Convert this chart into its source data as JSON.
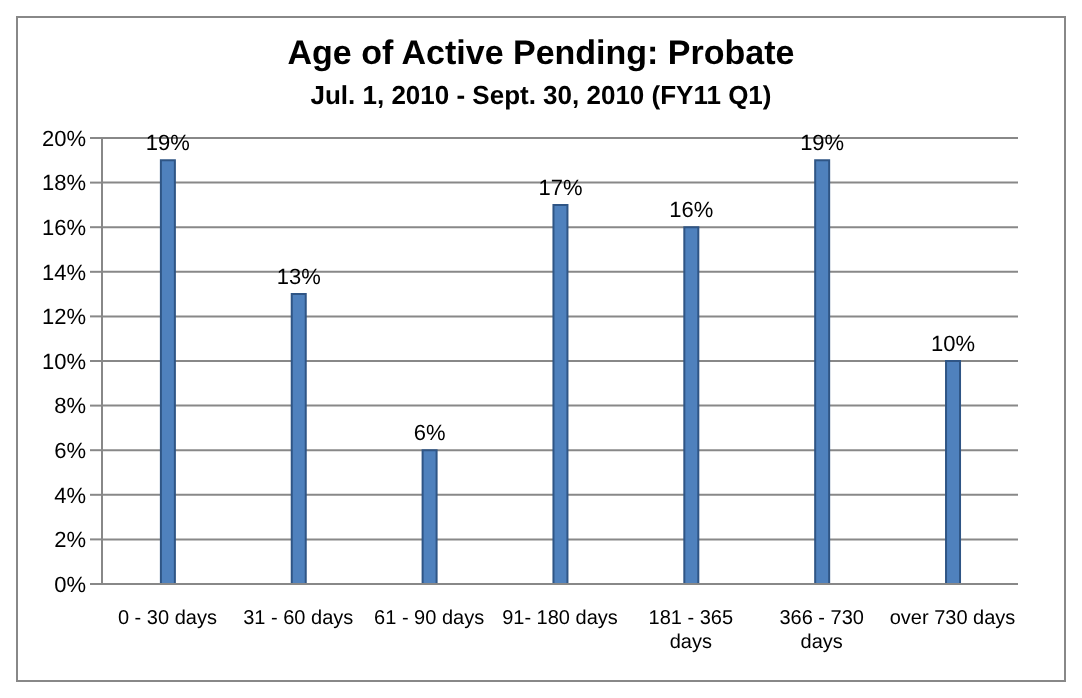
{
  "chart_data": {
    "type": "bar",
    "title": "Age of Active Pending: Probate",
    "subtitle": "Jul. 1, 2010 - Sept. 30, 2010 (FY11 Q1)",
    "categories": [
      "0 - 30 days",
      "31 - 60 days",
      "61 - 90 days",
      "91- 180 days",
      "181 - 365 days",
      "366 - 730 days",
      "over 730 days"
    ],
    "values": [
      19,
      13,
      6,
      17,
      16,
      19,
      10
    ],
    "value_labels": [
      "19%",
      "13%",
      "6%",
      "17%",
      "16%",
      "19%",
      "10%"
    ],
    "color": "#4f81bd",
    "ylim": [
      0,
      20
    ],
    "yticks": [
      {
        "value": 0,
        "label": "0%"
      },
      {
        "value": 2,
        "label": "2%"
      },
      {
        "value": 4,
        "label": "4%"
      },
      {
        "value": 6,
        "label": "6%"
      },
      {
        "value": 8,
        "label": "8%"
      },
      {
        "value": 10,
        "label": "10%"
      },
      {
        "value": 12,
        "label": "12%"
      },
      {
        "value": 14,
        "label": "14%"
      },
      {
        "value": 16,
        "label": "16%"
      },
      {
        "value": 18,
        "label": "18%"
      },
      {
        "value": 20,
        "label": "20%"
      }
    ],
    "grid": "y",
    "legend": false
  }
}
